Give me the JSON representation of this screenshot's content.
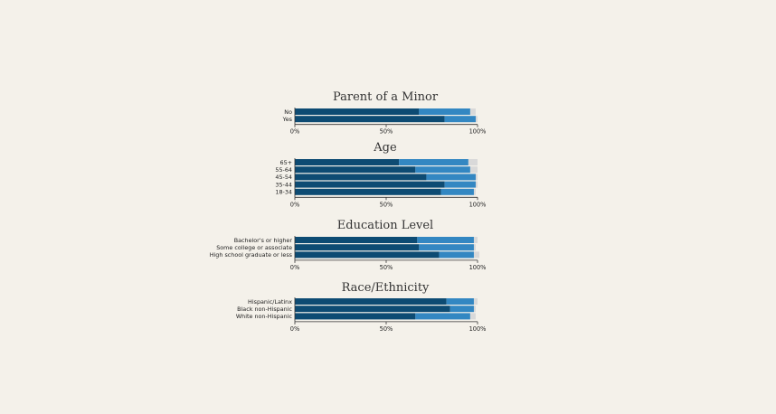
{
  "colors": {
    "background": "#f4f1ea",
    "segment_dark": "#0d4b73",
    "segment_mid": "#3387c2",
    "segment_light": "#d9d9d9",
    "axis": "#333333"
  },
  "chart_data": [
    {
      "type": "bar",
      "orientation": "horizontal",
      "stacked": true,
      "title": "Parent of a Minor",
      "categories": [
        "No",
        "Yes"
      ],
      "series": [
        {
          "values": [
            68,
            82
          ]
        },
        {
          "values": [
            28,
            17
          ]
        },
        {
          "values": [
            3,
            1
          ]
        }
      ],
      "xlim": [
        0,
        100
      ],
      "xticks": [
        "0%",
        "50%",
        "100%"
      ]
    },
    {
      "type": "bar",
      "orientation": "horizontal",
      "stacked": true,
      "title": "Age",
      "categories": [
        "65+",
        "55-64",
        "45-54",
        "35-44",
        "18-34"
      ],
      "series": [
        {
          "values": [
            57,
            66,
            72,
            82,
            80
          ]
        },
        {
          "values": [
            38,
            30,
            27,
            17,
            18
          ]
        },
        {
          "values": [
            5,
            4,
            1,
            1,
            1
          ]
        }
      ],
      "xlim": [
        0,
        100
      ],
      "xticks": [
        "0%",
        "50%",
        "100%"
      ]
    },
    {
      "type": "bar",
      "orientation": "horizontal",
      "stacked": true,
      "title": "Education Level",
      "categories": [
        "Bachelor's or higher",
        "Some college or associate",
        "High school graduate or less"
      ],
      "series": [
        {
          "values": [
            67,
            68,
            79
          ]
        },
        {
          "values": [
            31,
            30,
            19
          ]
        },
        {
          "values": [
            2,
            1,
            3
          ]
        }
      ],
      "xlim": [
        0,
        100
      ],
      "xticks": [
        "0%",
        "50%",
        "100%"
      ]
    },
    {
      "type": "bar",
      "orientation": "horizontal",
      "stacked": true,
      "title": "Race/Ethnicity",
      "categories": [
        "Hispanic/Latinx",
        "Black non-Hispanic",
        "White non-Hispanic"
      ],
      "series": [
        {
          "values": [
            83,
            85,
            66
          ]
        },
        {
          "values": [
            15,
            13,
            30
          ]
        },
        {
          "values": [
            2,
            1,
            3
          ]
        }
      ],
      "xlim": [
        0,
        100
      ],
      "xticks": [
        "0%",
        "50%",
        "100%"
      ]
    }
  ]
}
